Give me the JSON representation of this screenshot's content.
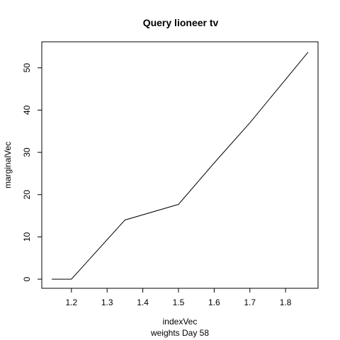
{
  "chart_data": {
    "type": "line",
    "title": "Query lioneer tv",
    "xlabel": "indexVec",
    "sub": "weights Day 58",
    "ylabel": "marginalVec",
    "xlim": [
      1.117,
      1.891
    ],
    "ylim": [
      -2.16,
      56.16
    ],
    "x_ticks": [
      1.2,
      1.3,
      1.4,
      1.5,
      1.6,
      1.7,
      1.8
    ],
    "y_ticks": [
      0,
      10,
      20,
      30,
      40,
      50
    ],
    "series": [
      {
        "x": [
          1.145,
          1.2,
          1.35,
          1.5,
          1.6,
          1.7,
          1.863
        ],
        "y": [
          0,
          0,
          14,
          17.7,
          27.5,
          37.0,
          53.7
        ]
      }
    ],
    "colors": {
      "line": "#000000",
      "axis": "#000000"
    }
  }
}
